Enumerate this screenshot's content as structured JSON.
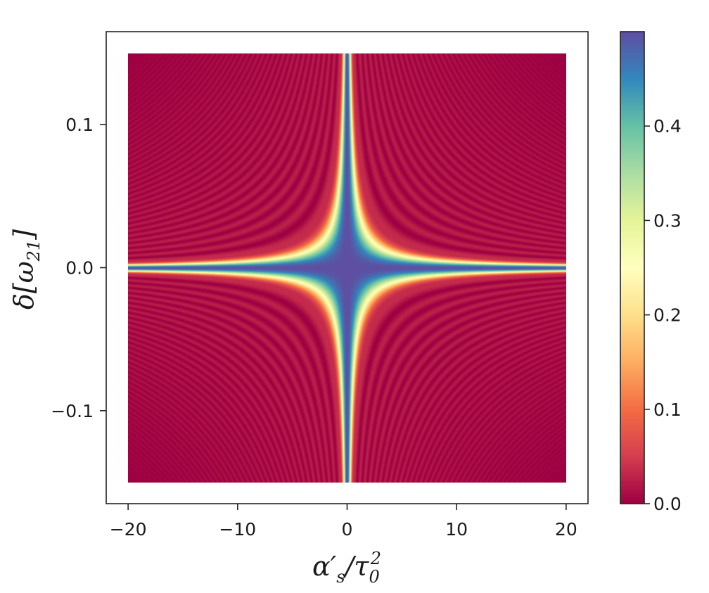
{
  "chart_data": {
    "type": "heatmap",
    "title": "",
    "xlabel": "α′s/τ0²",
    "ylabel": "δ[ω21]",
    "xlabel_parts": {
      "main": "α",
      "prime": "′",
      "sub": "s",
      "slash": "/τ",
      "sub2": "0",
      "sup": "2"
    },
    "ylabel_parts": {
      "main": "δ[ω",
      "sub": "21",
      "close": "]"
    },
    "x_range": [
      -20,
      20
    ],
    "y_range": [
      -0.15,
      0.15
    ],
    "xlim": [
      -22,
      22
    ],
    "ylim": [
      -0.165,
      0.165
    ],
    "x_ticks": [
      -20,
      -10,
      0,
      10,
      20
    ],
    "x_tick_labels": [
      "−20",
      "−10",
      "0",
      "10",
      "20"
    ],
    "y_ticks": [
      -0.1,
      0.0,
      0.1
    ],
    "y_tick_labels": [
      "−0.1",
      "0.0",
      "0.1"
    ],
    "colorbar": {
      "range": [
        0.0,
        0.5
      ],
      "ticks": [
        0.0,
        0.1,
        0.2,
        0.3,
        0.4
      ],
      "tick_labels": [
        "0.0",
        "0.1",
        "0.2",
        "0.3",
        "0.4"
      ],
      "colormap": "Spectral"
    },
    "z_max": 0.5,
    "z_min": 0.0,
    "grid": false,
    "colors": [
      "#9e0142",
      "#d53e4f",
      "#f46d43",
      "#fdae61",
      "#fee08b",
      "#ffffbf",
      "#e6f598",
      "#abdda4",
      "#66c2a5",
      "#3288bd",
      "#5e4fa2"
    ]
  }
}
